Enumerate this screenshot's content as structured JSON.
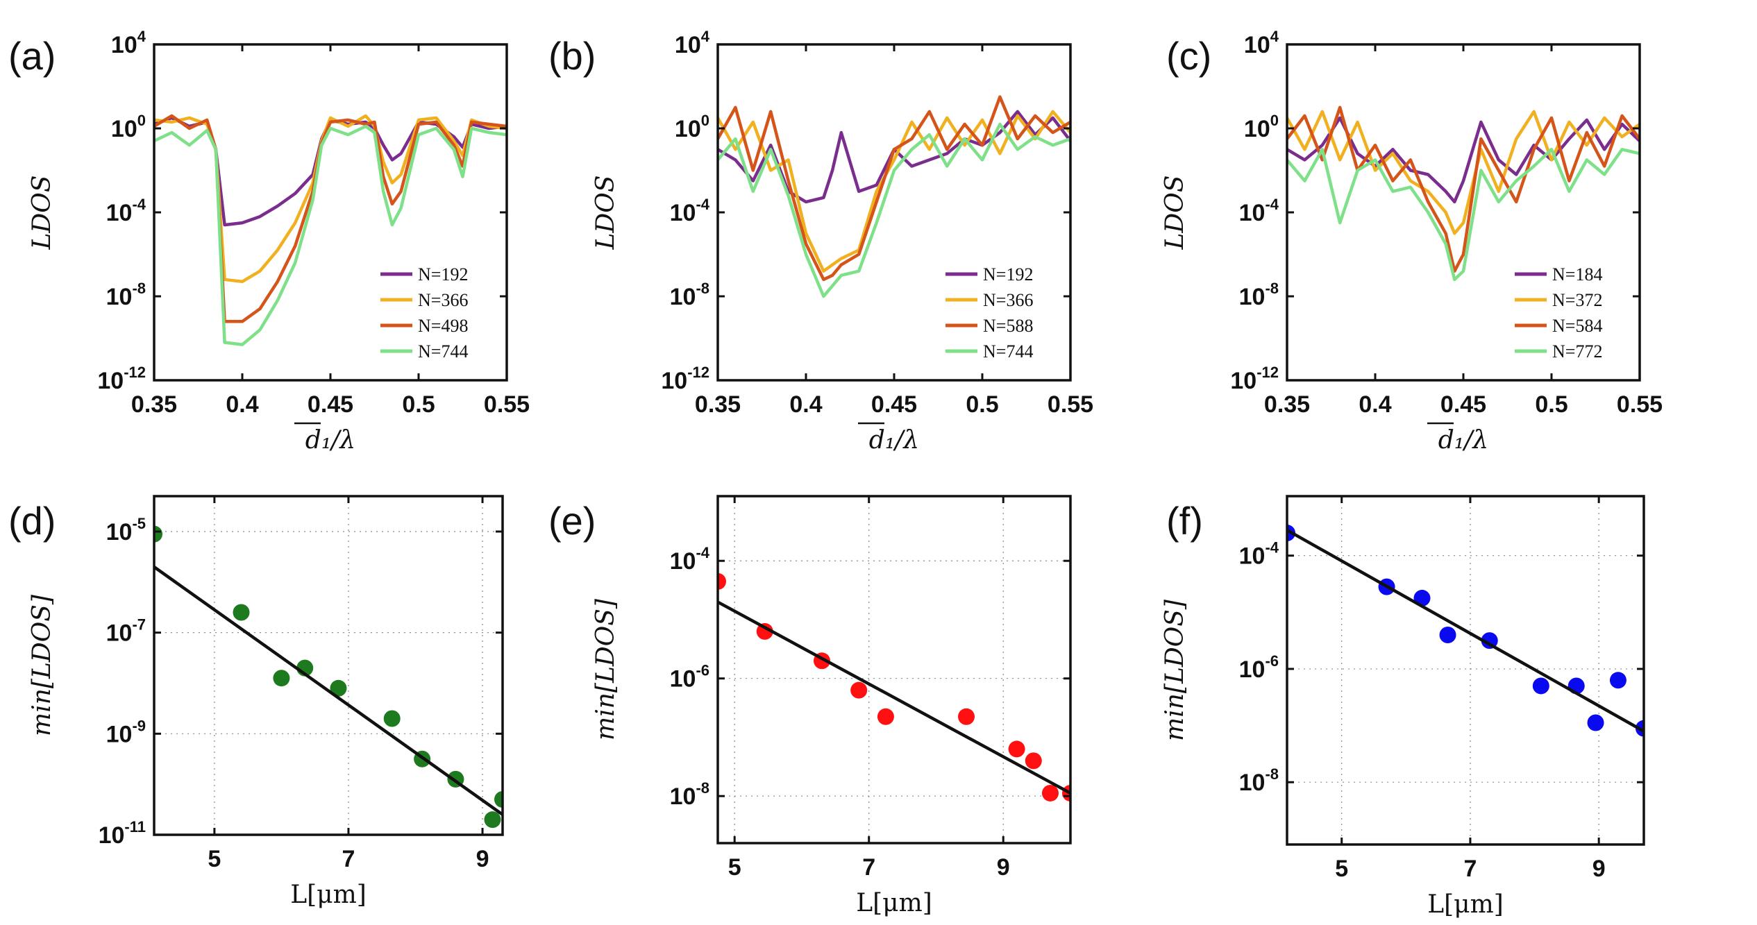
{
  "figure_title": "",
  "chart_data": [
    {
      "panel": "(a)",
      "type": "line",
      "yscale": "log",
      "xlim": [
        0.35,
        0.55
      ],
      "ylim_exp": [
        -12,
        4
      ],
      "xticks": [
        "0.35",
        "0.4",
        "0.45",
        "0.5",
        "0.55"
      ],
      "yticks": [
        {
          "base": "10",
          "exp": "4"
        },
        {
          "base": "10",
          "exp": "0"
        },
        {
          "base": "10",
          "exp": "-4"
        },
        {
          "base": "10",
          "exp": "-8"
        },
        {
          "base": "10",
          "exp": "-12"
        }
      ],
      "xlabel": "d₁/λ",
      "ylabel": "LDOS",
      "legend": [
        "N=192",
        "N=366",
        "N=498",
        "N=744"
      ],
      "series": [
        {
          "name": "N=192",
          "color": "#7B2D8E",
          "x": [
            0.35,
            0.36,
            0.37,
            0.38,
            0.385,
            0.39,
            0.4,
            0.41,
            0.42,
            0.43,
            0.44,
            0.445,
            0.45,
            0.46,
            0.47,
            0.475,
            0.48,
            0.485,
            0.49,
            0.5,
            0.51,
            0.52,
            0.525,
            0.53,
            0.54,
            0.55
          ],
          "log10_y": [
            0.2,
            0.5,
            0.1,
            0.3,
            -1,
            -4.6,
            -4.5,
            -4.2,
            -3.7,
            -3.1,
            -2.2,
            -0.5,
            0.4,
            0.2,
            0.3,
            0.0,
            -0.8,
            -1.5,
            -1.2,
            0.3,
            0.2,
            -0.4,
            -0.9,
            0.2,
            0.0,
            0.1
          ]
        },
        {
          "name": "N=366",
          "color": "#F0B020",
          "x": [
            0.35,
            0.36,
            0.37,
            0.38,
            0.385,
            0.39,
            0.4,
            0.41,
            0.42,
            0.43,
            0.44,
            0.445,
            0.45,
            0.46,
            0.47,
            0.475,
            0.48,
            0.485,
            0.49,
            0.5,
            0.51,
            0.52,
            0.525,
            0.53,
            0.54,
            0.55
          ],
          "log10_y": [
            0.4,
            0.3,
            0.5,
            0.2,
            -1,
            -7.2,
            -7.3,
            -6.8,
            -5.8,
            -4.5,
            -2.6,
            -0.6,
            0.5,
            0.1,
            0.6,
            0.1,
            -1.6,
            -2.6,
            -2.2,
            0.4,
            0.5,
            -0.6,
            -1.3,
            0.4,
            0.1,
            0.0
          ]
        },
        {
          "name": "N=498",
          "color": "#D4541A",
          "x": [
            0.35,
            0.36,
            0.37,
            0.38,
            0.385,
            0.39,
            0.4,
            0.41,
            0.42,
            0.43,
            0.44,
            0.445,
            0.45,
            0.46,
            0.47,
            0.475,
            0.48,
            0.485,
            0.49,
            0.5,
            0.51,
            0.52,
            0.525,
            0.53,
            0.54,
            0.55
          ],
          "log10_y": [
            0.1,
            0.6,
            0.0,
            0.4,
            -1,
            -9.2,
            -9.2,
            -8.6,
            -7.3,
            -5.6,
            -3.0,
            -0.7,
            0.3,
            0.4,
            0.2,
            0.3,
            -2.3,
            -3.6,
            -3.0,
            0.2,
            0.3,
            -0.8,
            -1.8,
            0.3,
            0.2,
            0.1
          ]
        },
        {
          "name": "N=744",
          "color": "#7EE089",
          "x": [
            0.35,
            0.36,
            0.37,
            0.38,
            0.385,
            0.39,
            0.4,
            0.41,
            0.42,
            0.43,
            0.44,
            0.445,
            0.45,
            0.46,
            0.47,
            0.475,
            0.48,
            0.485,
            0.49,
            0.5,
            0.51,
            0.52,
            0.525,
            0.53,
            0.54,
            0.55
          ],
          "log10_y": [
            -0.6,
            -0.2,
            -0.8,
            -0.1,
            -1,
            -10.2,
            -10.3,
            -9.6,
            -8.2,
            -6.4,
            -3.4,
            -0.8,
            0.0,
            -0.3,
            0.1,
            -0.2,
            -3.0,
            -4.6,
            -3.8,
            -0.3,
            0.0,
            -1.0,
            -2.3,
            0.0,
            -0.2,
            -0.3
          ]
        }
      ]
    },
    {
      "panel": "(b)",
      "type": "line",
      "yscale": "log",
      "xlim": [
        0.35,
        0.55
      ],
      "ylim_exp": [
        -12,
        4
      ],
      "xticks": [
        "0.35",
        "0.4",
        "0.45",
        "0.5",
        "0.55"
      ],
      "yticks": [
        {
          "base": "10",
          "exp": "4"
        },
        {
          "base": "10",
          "exp": "0"
        },
        {
          "base": "10",
          "exp": "-4"
        },
        {
          "base": "10",
          "exp": "-8"
        },
        {
          "base": "10",
          "exp": "-12"
        }
      ],
      "xlabel": "d₁/λ",
      "ylabel": "LDOS",
      "legend": [
        "N=192",
        "N=366",
        "N=588",
        "N=744"
      ],
      "series": [
        {
          "name": "N=192",
          "color": "#7B2D8E",
          "x": [
            0.35,
            0.36,
            0.37,
            0.38,
            0.39,
            0.4,
            0.41,
            0.415,
            0.42,
            0.43,
            0.44,
            0.45,
            0.46,
            0.47,
            0.48,
            0.49,
            0.5,
            0.51,
            0.52,
            0.53,
            0.54,
            0.55
          ],
          "log10_y": [
            -1.0,
            -1.5,
            -2.5,
            -0.8,
            -3.0,
            -3.5,
            -3.3,
            -2.0,
            -0.2,
            -3.0,
            -2.7,
            -1.0,
            -1.8,
            -1.5,
            -1.2,
            -0.5,
            -0.8,
            -0.2,
            0.8,
            -0.3,
            0.5,
            -0.6
          ]
        },
        {
          "name": "N=366",
          "color": "#F0B020",
          "x": [
            0.35,
            0.36,
            0.37,
            0.38,
            0.39,
            0.4,
            0.41,
            0.415,
            0.42,
            0.43,
            0.44,
            0.45,
            0.46,
            0.47,
            0.48,
            0.49,
            0.5,
            0.51,
            0.52,
            0.53,
            0.54,
            0.55
          ],
          "log10_y": [
            0.5,
            -1.0,
            0.3,
            -2.0,
            -1.5,
            -5.0,
            -6.8,
            -6.5,
            -6.2,
            -5.8,
            -3.0,
            -1.5,
            0.3,
            -1.0,
            0.5,
            -0.8,
            0.4,
            -1.2,
            0.6,
            -0.5,
            0.8,
            -0.2
          ]
        },
        {
          "name": "N=588",
          "color": "#D4541A",
          "x": [
            0.35,
            0.36,
            0.37,
            0.38,
            0.39,
            0.4,
            0.41,
            0.415,
            0.42,
            0.43,
            0.44,
            0.45,
            0.46,
            0.47,
            0.48,
            0.49,
            0.5,
            0.51,
            0.52,
            0.53,
            0.54,
            0.55
          ],
          "log10_y": [
            -0.5,
            1.0,
            -2.0,
            0.8,
            -2.5,
            -5.5,
            -7.2,
            -7.0,
            -6.5,
            -6.0,
            -3.5,
            -1.0,
            -0.5,
            0.8,
            -1.0,
            0.2,
            -0.8,
            1.5,
            -0.5,
            0.6,
            -0.2,
            0.3
          ]
        },
        {
          "name": "N=744",
          "color": "#7EE089",
          "x": [
            0.35,
            0.36,
            0.37,
            0.38,
            0.39,
            0.4,
            0.41,
            0.415,
            0.42,
            0.43,
            0.44,
            0.45,
            0.46,
            0.47,
            0.48,
            0.49,
            0.5,
            0.51,
            0.52,
            0.53,
            0.54,
            0.55
          ],
          "log10_y": [
            -1.5,
            -0.5,
            -3.0,
            -1.0,
            -3.2,
            -6.0,
            -8.0,
            -7.5,
            -7.0,
            -6.8,
            -4.5,
            -2.0,
            -1.0,
            -0.3,
            -1.8,
            -0.5,
            -1.5,
            0.2,
            -1.0,
            -0.4,
            -0.8,
            -0.5
          ]
        }
      ]
    },
    {
      "panel": "(c)",
      "type": "line",
      "yscale": "log",
      "xlim": [
        0.35,
        0.55
      ],
      "ylim_exp": [
        -12,
        4
      ],
      "xticks": [
        "0.35",
        "0.4",
        "0.45",
        "0.5",
        "0.55"
      ],
      "yticks": [
        {
          "base": "10",
          "exp": "4"
        },
        {
          "base": "10",
          "exp": "0"
        },
        {
          "base": "10",
          "exp": "-4"
        },
        {
          "base": "10",
          "exp": "-8"
        },
        {
          "base": "10",
          "exp": "-12"
        }
      ],
      "xlabel": "d₁/λ",
      "ylabel": "LDOS",
      "legend": [
        "N=184",
        "N=372",
        "N=584",
        "N=772"
      ],
      "series": [
        {
          "name": "N=184",
          "color": "#7B2D8E",
          "x": [
            0.35,
            0.36,
            0.37,
            0.38,
            0.39,
            0.4,
            0.41,
            0.42,
            0.43,
            0.44,
            0.445,
            0.45,
            0.46,
            0.47,
            0.48,
            0.49,
            0.5,
            0.51,
            0.52,
            0.53,
            0.54,
            0.55
          ],
          "log10_y": [
            -1.0,
            -1.5,
            -0.8,
            0.5,
            -1.2,
            -1.8,
            -1.0,
            -2.0,
            -2.2,
            -3.0,
            -3.5,
            -2.5,
            0.3,
            -1.5,
            -2.2,
            -0.8,
            -1.5,
            -0.5,
            0.4,
            -1.0,
            0.2,
            -0.6
          ]
        },
        {
          "name": "N=372",
          "color": "#F0B020",
          "x": [
            0.35,
            0.36,
            0.37,
            0.38,
            0.39,
            0.4,
            0.41,
            0.42,
            0.43,
            0.44,
            0.445,
            0.45,
            0.46,
            0.47,
            0.48,
            0.49,
            0.5,
            0.51,
            0.52,
            0.53,
            0.54,
            0.55
          ],
          "log10_y": [
            0.5,
            -1.0,
            0.8,
            -1.5,
            0.3,
            -2.0,
            -1.2,
            -2.5,
            -3.0,
            -4.0,
            -5.0,
            -4.5,
            -1.0,
            -3.0,
            -0.5,
            0.8,
            -1.5,
            0.3,
            -0.8,
            0.5,
            -0.4,
            0.2
          ]
        },
        {
          "name": "N=584",
          "color": "#D4541A",
          "x": [
            0.35,
            0.36,
            0.37,
            0.38,
            0.39,
            0.4,
            0.41,
            0.42,
            0.43,
            0.44,
            0.445,
            0.45,
            0.46,
            0.47,
            0.48,
            0.49,
            0.5,
            0.51,
            0.52,
            0.53,
            0.54,
            0.55
          ],
          "log10_y": [
            -0.5,
            0.6,
            -1.5,
            1.0,
            -2.0,
            -0.8,
            -2.5,
            -1.5,
            -3.5,
            -5.0,
            -6.8,
            -6.0,
            -0.5,
            -2.0,
            -3.5,
            -1.0,
            0.5,
            -2.5,
            -0.2,
            -1.8,
            0.6,
            -0.5
          ]
        },
        {
          "name": "N=772",
          "color": "#7EE089",
          "x": [
            0.35,
            0.36,
            0.37,
            0.38,
            0.39,
            0.4,
            0.41,
            0.42,
            0.43,
            0.44,
            0.445,
            0.45,
            0.46,
            0.47,
            0.48,
            0.49,
            0.5,
            0.51,
            0.52,
            0.53,
            0.54,
            0.55
          ],
          "log10_y": [
            -1.5,
            -2.5,
            -1.0,
            -4.5,
            -2.0,
            -1.5,
            -3.0,
            -2.8,
            -4.0,
            -5.5,
            -7.2,
            -6.8,
            -2.0,
            -3.5,
            -2.5,
            -1.8,
            -1.0,
            -3.0,
            -1.5,
            -2.2,
            -1.0,
            -1.2
          ]
        }
      ]
    },
    {
      "panel": "(d)",
      "type": "scatter",
      "yscale": "log",
      "xlim": [
        4.1,
        9.3
      ],
      "ylim_exp": [
        -11,
        -4.3
      ],
      "xticks": [
        "5",
        "7",
        "9"
      ],
      "yticks": [
        {
          "base": "10",
          "exp": "-5"
        },
        {
          "base": "10",
          "exp": "-7"
        },
        {
          "base": "10",
          "exp": "-9"
        },
        {
          "base": "10",
          "exp": "-11"
        }
      ],
      "xlabel": "L[μm]",
      "ylabel": "min[LDOS]",
      "marker_color": "#1E7A1E",
      "x": [
        4.1,
        5.4,
        6.0,
        6.35,
        6.85,
        7.65,
        8.1,
        8.6,
        9.15,
        9.3
      ],
      "log10_y": [
        -5.05,
        -6.6,
        -7.9,
        -7.7,
        -8.1,
        -8.7,
        -9.5,
        -9.9,
        -10.7,
        -10.3
      ],
      "fit": {
        "x": [
          4.1,
          9.3
        ],
        "log10_y": [
          -5.7,
          -10.6
        ]
      }
    },
    {
      "panel": "(e)",
      "type": "scatter",
      "yscale": "log",
      "xlim": [
        4.75,
        10.0
      ],
      "ylim_exp": [
        -8.8,
        -2.9
      ],
      "xticks": [
        "5",
        "7",
        "9"
      ],
      "yticks": [
        {
          "base": "10",
          "exp": "-4"
        },
        {
          "base": "10",
          "exp": "-6"
        },
        {
          "base": "10",
          "exp": "-8"
        }
      ],
      "xlabel": "L[μm]",
      "ylabel": "min[LDOS]",
      "marker_color": "#FF0F0F",
      "x": [
        4.75,
        5.45,
        6.3,
        6.85,
        7.25,
        8.45,
        9.2,
        9.45,
        9.7,
        10.0
      ],
      "log10_y": [
        -4.35,
        -5.2,
        -5.7,
        -6.2,
        -6.65,
        -6.65,
        -7.2,
        -7.4,
        -7.95,
        -7.95
      ],
      "fit": {
        "x": [
          4.75,
          10.0
        ],
        "log10_y": [
          -4.7,
          -7.95
        ]
      }
    },
    {
      "panel": "(f)",
      "type": "scatter",
      "yscale": "log",
      "xlim": [
        4.15,
        9.7
      ],
      "ylim_exp": [
        -9.1,
        -2.95
      ],
      "xticks": [
        "5",
        "7",
        "9"
      ],
      "yticks": [
        {
          "base": "10",
          "exp": "-4"
        },
        {
          "base": "10",
          "exp": "-6"
        },
        {
          "base": "10",
          "exp": "-8"
        }
      ],
      "xlabel": "L[μm]",
      "ylabel": "min[LDOS]",
      "marker_color": "#0A0AF0",
      "x": [
        4.15,
        5.7,
        6.25,
        6.65,
        7.3,
        8.1,
        8.65,
        8.95,
        9.3,
        9.7
      ],
      "log10_y": [
        -3.6,
        -4.55,
        -4.75,
        -5.4,
        -5.5,
        -6.3,
        -6.3,
        -6.95,
        -6.2,
        -7.05
      ],
      "fit": {
        "x": [
          4.15,
          9.7
        ],
        "log10_y": [
          -3.55,
          -7.1
        ]
      }
    }
  ]
}
